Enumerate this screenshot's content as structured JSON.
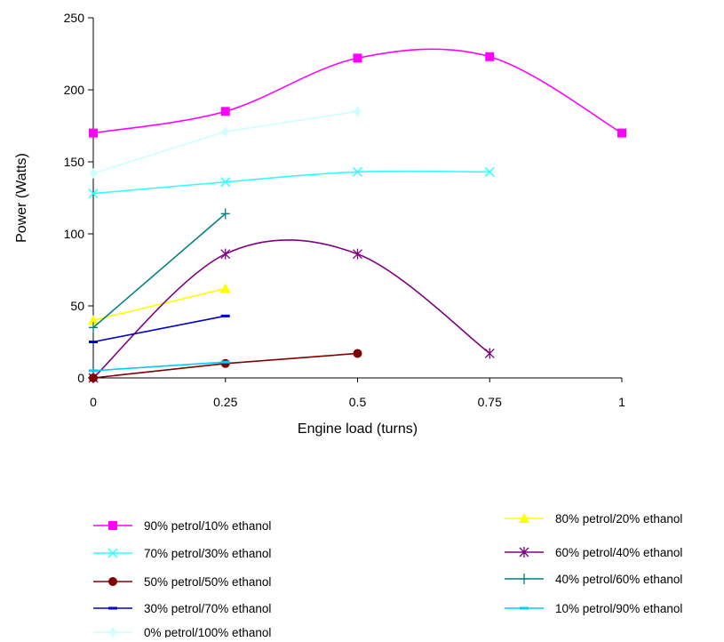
{
  "chart_data": {
    "type": "line",
    "title": "",
    "xlabel": "Engine load (turns)",
    "ylabel": "Power  (Watts)",
    "xlim": [
      0,
      1
    ],
    "ylim": [
      0,
      250
    ],
    "xticks": [
      {
        "value": 0,
        "label": "0"
      },
      {
        "value": 0.25,
        "label": "0.25"
      },
      {
        "value": 0.5,
        "label": "0.5"
      },
      {
        "value": 0.75,
        "label": "0.75"
      },
      {
        "value": 1,
        "label": "1"
      }
    ],
    "yticks": [
      {
        "value": 0,
        "label": "0"
      },
      {
        "value": 50,
        "label": "50"
      },
      {
        "value": 100,
        "label": "100"
      },
      {
        "value": 150,
        "label": "150"
      },
      {
        "value": 200,
        "label": "200"
      },
      {
        "value": 250,
        "label": "250"
      }
    ],
    "grid": false,
    "legend_position": "bottom",
    "series": [
      {
        "name": "90% petrol/10% ethanol",
        "color": "#ff00ff",
        "marker": "square",
        "smooth": true,
        "x": [
          0,
          0.25,
          0.5,
          0.75,
          1
        ],
        "y": [
          170,
          185,
          222,
          223,
          170
        ]
      },
      {
        "name": "80% petrol/20% ethanol",
        "color": "#ffff00",
        "marker": "triangle",
        "smooth": false,
        "x": [
          0,
          0.25
        ],
        "y": [
          40,
          62
        ]
      },
      {
        "name": "70% petrol/30% ethanol",
        "color": "#33ffff",
        "marker": "x",
        "smooth": true,
        "x": [
          0,
          0.25,
          0.5,
          0.75
        ],
        "y": [
          128,
          136,
          143,
          143
        ]
      },
      {
        "name": "60% petrol/40% ethanol",
        "color": "#800080",
        "marker": "asterisk",
        "smooth": true,
        "x": [
          0,
          0.25,
          0.5,
          0.75
        ],
        "y": [
          0,
          86,
          86,
          17
        ]
      },
      {
        "name": "50% petrol/50% ethanol",
        "color": "#800000",
        "marker": "circle",
        "smooth": false,
        "x": [
          0,
          0.25,
          0.5
        ],
        "y": [
          0,
          10,
          17
        ]
      },
      {
        "name": "40% petrol/60% ethanol",
        "color": "#008080",
        "marker": "plus",
        "smooth": false,
        "x": [
          0,
          0.25
        ],
        "y": [
          35,
          114
        ]
      },
      {
        "name": "30% petrol/70% ethanol",
        "color": "#0000cc",
        "marker": "dash",
        "smooth": false,
        "x": [
          0,
          0.25
        ],
        "y": [
          25,
          43
        ]
      },
      {
        "name": "10% petrol/90% ethanol",
        "color": "#00ccff",
        "marker": "dash",
        "smooth": false,
        "x": [
          0,
          0.25
        ],
        "y": [
          5,
          11
        ]
      },
      {
        "name": "0% petrol/100% ethanol",
        "color": "#ccffff",
        "marker": "diamond",
        "smooth": false,
        "x": [
          0,
          0.25,
          0.5
        ],
        "y": [
          142,
          171,
          185
        ]
      }
    ],
    "legend_order": [
      0,
      1,
      2,
      3,
      4,
      5,
      6,
      7,
      8
    ]
  }
}
